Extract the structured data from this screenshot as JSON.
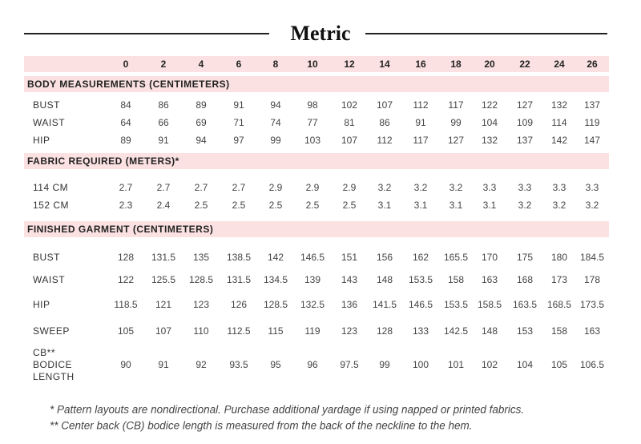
{
  "title": "Metric",
  "sizes": [
    0,
    2,
    4,
    6,
    8,
    10,
    12,
    14,
    16,
    18,
    20,
    22,
    24,
    26
  ],
  "sections": [
    {
      "heading": "BODY MEASUREMENTS (CENTIMETERS)",
      "rows": [
        {
          "label": [
            "BUST"
          ],
          "values": [
            84,
            86,
            89,
            91,
            94,
            98,
            102,
            107,
            112,
            117,
            122,
            127,
            132,
            137
          ]
        },
        {
          "label": [
            "WAIST"
          ],
          "values": [
            64,
            66,
            69,
            71,
            74,
            77,
            81,
            86,
            91,
            99,
            104,
            109,
            114,
            119
          ]
        },
        {
          "label": [
            "HIP"
          ],
          "values": [
            89,
            91,
            94,
            97,
            99,
            103,
            107,
            112,
            117,
            127,
            132,
            137,
            142,
            147
          ]
        }
      ]
    },
    {
      "heading": "FABRIC REQUIRED (METERS)*",
      "rows": [
        {
          "label": [
            "114 CM"
          ],
          "values": [
            2.7,
            2.7,
            2.7,
            2.7,
            2.9,
            2.9,
            2.9,
            3.2,
            3.2,
            3.2,
            3.3,
            3.3,
            3.3,
            3.3
          ]
        },
        {
          "label": [
            "152 CM"
          ],
          "values": [
            2.3,
            2.4,
            2.5,
            2.5,
            2.5,
            2.5,
            2.5,
            3.1,
            3.1,
            3.1,
            3.1,
            3.2,
            3.2,
            3.2
          ]
        }
      ]
    },
    {
      "heading": "FINISHED GARMENT (CENTIMETERS)",
      "rows": [
        {
          "label": [
            "BUST"
          ],
          "values": [
            128,
            131.5,
            135,
            138.5,
            142,
            146.5,
            151,
            156,
            162,
            165.5,
            170,
            175,
            180,
            184.5
          ]
        },
        {
          "label": [
            "WAIST"
          ],
          "values": [
            122,
            125.5,
            128.5,
            131.5,
            134.5,
            139,
            143,
            148,
            153.5,
            158,
            163,
            168,
            173,
            178
          ]
        },
        {
          "label": [
            "HIP"
          ],
          "values": [
            118.5,
            121,
            123,
            126,
            128.5,
            132.5,
            136,
            141.5,
            146.5,
            153.5,
            158.5,
            163.5,
            168.5,
            173.5
          ]
        },
        {
          "label": [
            "SWEEP"
          ],
          "values": [
            105,
            107,
            110,
            112.5,
            115,
            119,
            123,
            128,
            133,
            142.5,
            148,
            153,
            158,
            163
          ]
        },
        {
          "label": [
            "CB**",
            "BODICE",
            "LENGTH"
          ],
          "values": [
            90,
            91,
            92,
            93.5,
            95,
            96,
            97.5,
            99,
            100,
            101,
            102,
            104,
            105,
            106.5
          ]
        }
      ]
    }
  ],
  "footnotes": [
    "* Pattern layouts are nondirectional. Purchase additional yardage if using napped or printed fabrics.",
    "** Center back (CB) bodice length is measured from the back of the neckline to the hem."
  ]
}
